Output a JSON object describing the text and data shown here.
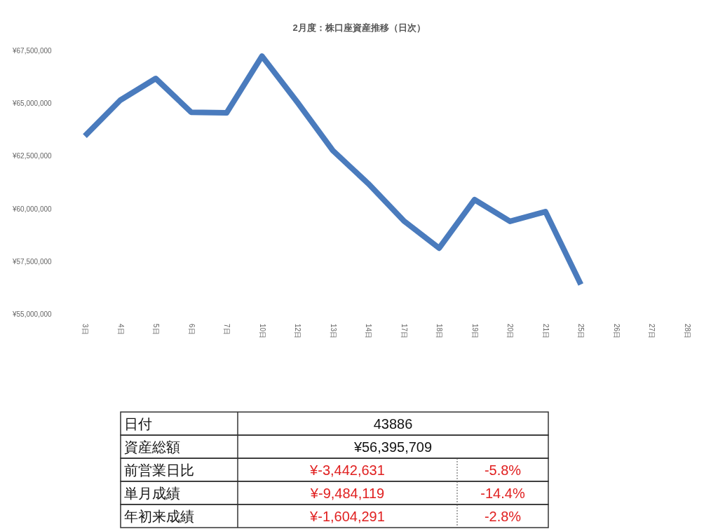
{
  "chart_data": [
    {
      "type": "line",
      "title": "2月度：株口座資産推移（日次）",
      "categories": [
        "3日",
        "4日",
        "5日",
        "6日",
        "7日",
        "10日",
        "12日",
        "13日",
        "14日",
        "17日",
        "18日",
        "19日",
        "20日",
        "21日",
        "25日",
        "26日",
        "27日",
        "28日"
      ],
      "series": [
        {
          "color": "#4a7bbd",
          "values": [
            63440000,
            65140000,
            66170000,
            64570000,
            64540000,
            67230000,
            65040000,
            62750000,
            61180000,
            59420000,
            58120000,
            60420000,
            59390000,
            59850000,
            56400000,
            null,
            null,
            null
          ]
        }
      ],
      "ylim": [
        55000000,
        67500000
      ],
      "yticks": [
        {
          "value": 55000000,
          "label": "¥55,000,000"
        },
        {
          "value": 57500000,
          "label": "¥57,500,000"
        },
        {
          "value": 60000000,
          "label": "¥60,000,000"
        },
        {
          "value": 62500000,
          "label": "¥62,500,000"
        },
        {
          "value": 65000000,
          "label": "¥65,000,000"
        },
        {
          "value": 67500000,
          "label": "¥67,500,000"
        }
      ]
    },
    {
      "type": "other",
      "annotations": [
        "日付",
        "43886",
        "資産総額",
        "¥56,395,709",
        "前営業日比",
        "¥-3,442,631",
        "-5.8%",
        "単月成績",
        "¥-9,484,119",
        "-14.4%",
        "年初来成績",
        "¥-1,604,291",
        "-2.8%"
      ]
    }
  ]
}
